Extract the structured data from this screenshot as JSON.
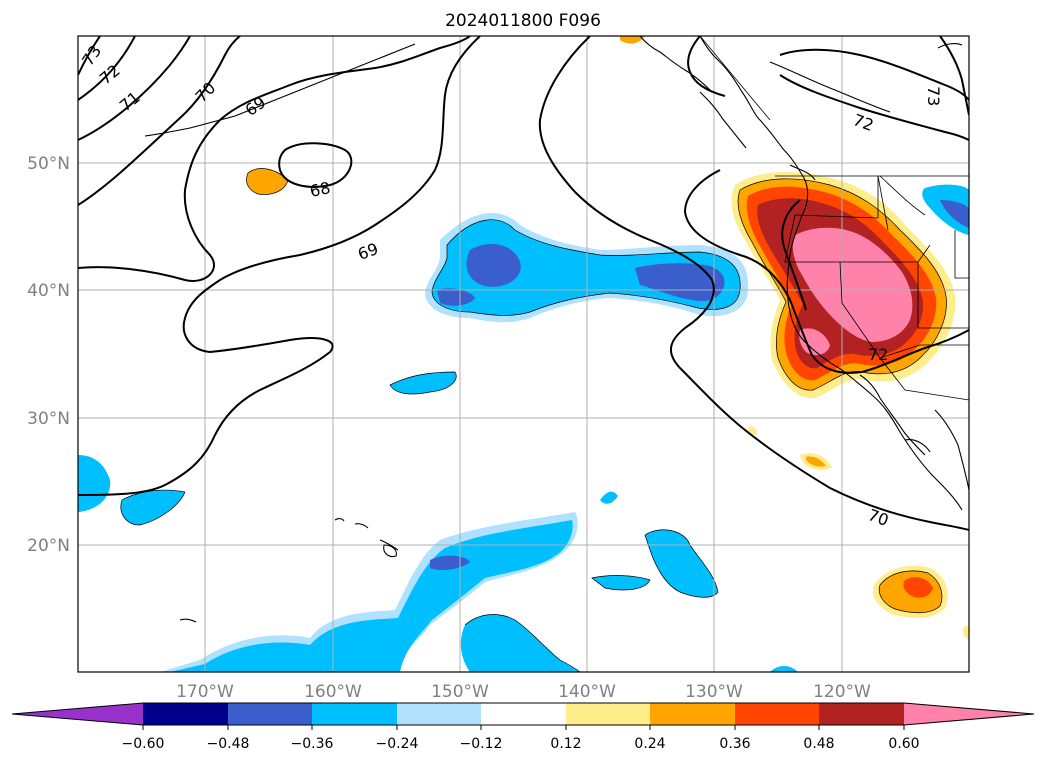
{
  "title": "2024011800 F096",
  "lat_labels": [
    "50°N",
    "40°N",
    "30°N",
    "20°N"
  ],
  "lon_labels": [
    "170°W",
    "160°W",
    "150°W",
    "140°W",
    "130°W",
    "120°W"
  ],
  "colorbar": {
    "colors": {
      "under": "#9932cc",
      "b1": "#00008b",
      "b2": "#3a5fcd",
      "b3": "#00bfff",
      "b4": "#b0e2ff",
      "b5": "#ffffff",
      "b6": "#ffec8b",
      "b7": "#ffa500",
      "b8": "#ff4500",
      "b9": "#b22222",
      "over": "#ff82ab"
    },
    "ticks": [
      "−0.60",
      "−0.48",
      "−0.36",
      "−0.24",
      "−0.12",
      "0.12",
      "0.24",
      "0.36",
      "0.48",
      "0.60"
    ]
  },
  "contour_labels": [
    "73",
    "72",
    "71",
    "70",
    "69",
    "68",
    "69",
    "72",
    "73",
    "72",
    "70"
  ]
}
